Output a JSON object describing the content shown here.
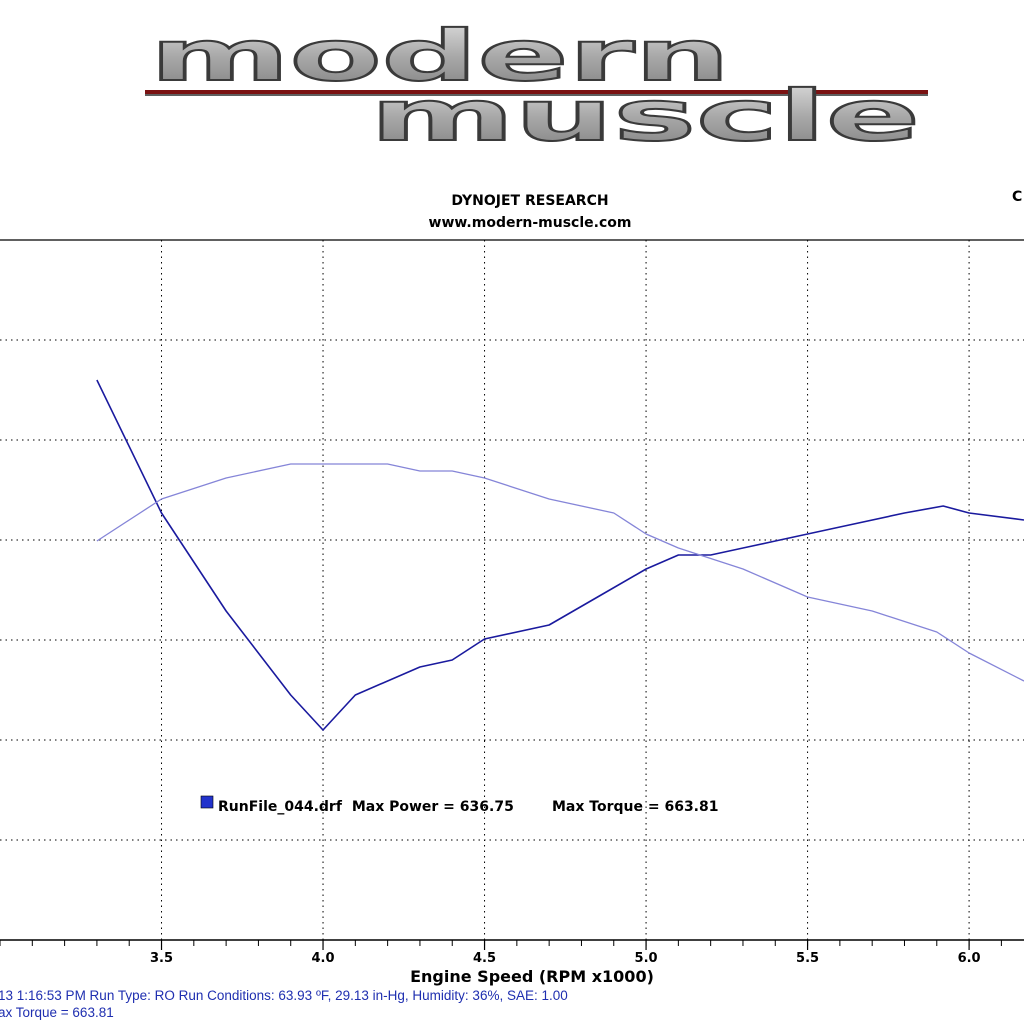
{
  "logo": {
    "line1": "modern",
    "line2": "muscle"
  },
  "header": {
    "line1": "DYNOJET RESEARCH",
    "line2": "www.modern-muscle.com",
    "corner": "C"
  },
  "footer": {
    "line1": "13 1:16:53 PM  Run Type: RO  Run Conditions: 63.93 ºF, 29.13 in-Hg,  Humidity:  36%, SAE: 1.00",
    "line2": "ax Torque = 663.81"
  },
  "colors": {
    "power": "#1a1a9e",
    "torque": "#8585d8",
    "legend_swatch": "#2233cc",
    "footer_text": "#1f2fb0"
  },
  "chart_data": {
    "type": "line",
    "xlabel": "Engine Speed (RPM x1000)",
    "xlim": [
      3.0,
      6.17
    ],
    "x_ticks": [
      "3.5",
      "4.0",
      "4.5",
      "5.0",
      "5.5",
      "6.0"
    ],
    "x_minor_step": 0.1,
    "grid": true,
    "legend": {
      "placement": "center-bottom",
      "run": "RunFile_044.drf",
      "max_power_label": "Max Power = 636.75",
      "max_torque_label": "Max Torque = 663.81"
    },
    "series": [
      {
        "key": "power",
        "values_as_fraction_of_plot_height": [
          [
            3.3,
            0.8
          ],
          [
            3.5,
            0.61
          ],
          [
            3.7,
            0.47
          ],
          [
            3.9,
            0.35
          ],
          [
            4.0,
            0.3
          ],
          [
            4.1,
            0.35
          ],
          [
            4.3,
            0.39
          ],
          [
            4.4,
            0.4
          ],
          [
            4.5,
            0.43
          ],
          [
            4.7,
            0.45
          ],
          [
            4.85,
            0.49
          ],
          [
            5.0,
            0.53
          ],
          [
            5.1,
            0.55
          ],
          [
            5.2,
            0.55
          ],
          [
            5.3,
            0.56
          ],
          [
            5.4,
            0.57
          ],
          [
            5.6,
            0.59
          ],
          [
            5.8,
            0.61
          ],
          [
            5.92,
            0.62
          ],
          [
            6.0,
            0.61
          ],
          [
            6.17,
            0.6
          ]
        ]
      },
      {
        "key": "torque",
        "values_as_fraction_of_plot_height": [
          [
            3.3,
            0.57
          ],
          [
            3.4,
            0.6
          ],
          [
            3.5,
            0.63
          ],
          [
            3.7,
            0.66
          ],
          [
            3.9,
            0.68
          ],
          [
            4.0,
            0.68
          ],
          [
            4.1,
            0.68
          ],
          [
            4.2,
            0.68
          ],
          [
            4.3,
            0.67
          ],
          [
            4.4,
            0.67
          ],
          [
            4.5,
            0.66
          ],
          [
            4.7,
            0.63
          ],
          [
            4.9,
            0.61
          ],
          [
            5.0,
            0.58
          ],
          [
            5.1,
            0.56
          ],
          [
            5.3,
            0.53
          ],
          [
            5.5,
            0.49
          ],
          [
            5.7,
            0.47
          ],
          [
            5.9,
            0.44
          ],
          [
            6.0,
            0.41
          ],
          [
            6.17,
            0.37
          ]
        ]
      }
    ]
  }
}
